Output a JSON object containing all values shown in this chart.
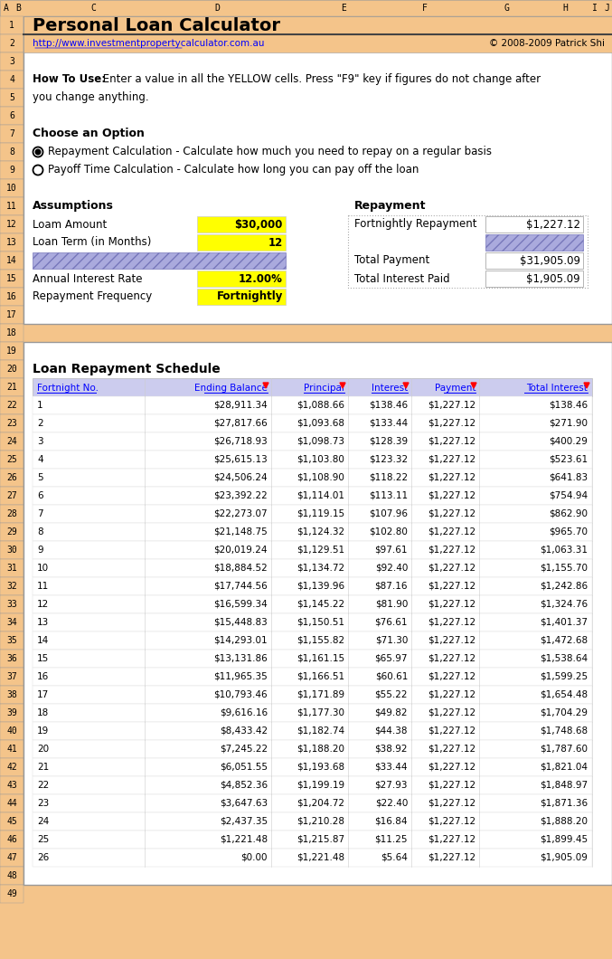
{
  "title": "Personal Loan Calculator",
  "url": "http://www.investmentpropertycalculator.com.au",
  "copyright": "© 2008-2009 Patrick Shi",
  "bg_color": "#F4C48A",
  "yellow": "#FFFF00",
  "how_to_use_bold": "How To Use:",
  "how_to_use_rest": " Enter a value in all the YELLOW cells. Press \"F9\" key if figures do not change after",
  "how_to_use_line2": "you change anything.",
  "choose_option": "Choose an Option",
  "radio1": "Repayment Calculation - Calculate how much you need to repay on a regular basis",
  "radio2": "Payoff Time Calculation - Calculate how long you can pay off the loan",
  "assumptions_label": "Assumptions",
  "repayment_label": "Repayment",
  "loan_amount_label": "Loam Amount",
  "loan_amount_val": "$30,000",
  "loan_term_label": "Loan Term (in Months)",
  "loan_term_val": "12",
  "annual_rate_label": "Annual Interest Rate",
  "annual_rate_val": "12.00%",
  "repay_freq_label": "Repayment Frequency",
  "repay_freq_val": "Fortnightly",
  "fortnight_repay_label": "Fortnightly Repayment",
  "fortnight_repay_val": "$1,227.12",
  "total_payment_label": "Total Payment",
  "total_payment_val": "$31,905.09",
  "total_interest_label": "Total Interest Paid",
  "total_interest_val": "$1,905.09",
  "schedule_title": "Loan Repayment Schedule",
  "col_headers": [
    "Fortnight No.",
    "Ending Balance",
    "Principal",
    "Interest",
    "Payment",
    "Total Interest"
  ],
  "schedule": [
    [
      1,
      "$28,911.34",
      "$1,088.66",
      "$138.46",
      "$1,227.12",
      "$138.46"
    ],
    [
      2,
      "$27,817.66",
      "$1,093.68",
      "$133.44",
      "$1,227.12",
      "$271.90"
    ],
    [
      3,
      "$26,718.93",
      "$1,098.73",
      "$128.39",
      "$1,227.12",
      "$400.29"
    ],
    [
      4,
      "$25,615.13",
      "$1,103.80",
      "$123.32",
      "$1,227.12",
      "$523.61"
    ],
    [
      5,
      "$24,506.24",
      "$1,108.90",
      "$118.22",
      "$1,227.12",
      "$641.83"
    ],
    [
      6,
      "$23,392.22",
      "$1,114.01",
      "$113.11",
      "$1,227.12",
      "$754.94"
    ],
    [
      7,
      "$22,273.07",
      "$1,119.15",
      "$107.96",
      "$1,227.12",
      "$862.90"
    ],
    [
      8,
      "$21,148.75",
      "$1,124.32",
      "$102.80",
      "$1,227.12",
      "$965.70"
    ],
    [
      9,
      "$20,019.24",
      "$1,129.51",
      "$97.61",
      "$1,227.12",
      "$1,063.31"
    ],
    [
      10,
      "$18,884.52",
      "$1,134.72",
      "$92.40",
      "$1,227.12",
      "$1,155.70"
    ],
    [
      11,
      "$17,744.56",
      "$1,139.96",
      "$87.16",
      "$1,227.12",
      "$1,242.86"
    ],
    [
      12,
      "$16,599.34",
      "$1,145.22",
      "$81.90",
      "$1,227.12",
      "$1,324.76"
    ],
    [
      13,
      "$15,448.83",
      "$1,150.51",
      "$76.61",
      "$1,227.12",
      "$1,401.37"
    ],
    [
      14,
      "$14,293.01",
      "$1,155.82",
      "$71.30",
      "$1,227.12",
      "$1,472.68"
    ],
    [
      15,
      "$13,131.86",
      "$1,161.15",
      "$65.97",
      "$1,227.12",
      "$1,538.64"
    ],
    [
      16,
      "$11,965.35",
      "$1,166.51",
      "$60.61",
      "$1,227.12",
      "$1,599.25"
    ],
    [
      17,
      "$10,793.46",
      "$1,171.89",
      "$55.22",
      "$1,227.12",
      "$1,654.48"
    ],
    [
      18,
      "$9,616.16",
      "$1,177.30",
      "$49.82",
      "$1,227.12",
      "$1,704.29"
    ],
    [
      19,
      "$8,433.42",
      "$1,182.74",
      "$44.38",
      "$1,227.12",
      "$1,748.68"
    ],
    [
      20,
      "$7,245.22",
      "$1,188.20",
      "$38.92",
      "$1,227.12",
      "$1,787.60"
    ],
    [
      21,
      "$6,051.55",
      "$1,193.68",
      "$33.44",
      "$1,227.12",
      "$1,821.04"
    ],
    [
      22,
      "$4,852.36",
      "$1,199.19",
      "$27.93",
      "$1,227.12",
      "$1,848.97"
    ],
    [
      23,
      "$3,647.63",
      "$1,204.72",
      "$22.40",
      "$1,227.12",
      "$1,871.36"
    ],
    [
      24,
      "$2,437.35",
      "$1,210.28",
      "$16.84",
      "$1,227.12",
      "$1,888.20"
    ],
    [
      25,
      "$1,221.48",
      "$1,215.87",
      "$11.25",
      "$1,227.12",
      "$1,899.45"
    ],
    [
      26,
      "$0.00",
      "$1,221.48",
      "$5.64",
      "$1,227.12",
      "$1,905.09"
    ]
  ]
}
